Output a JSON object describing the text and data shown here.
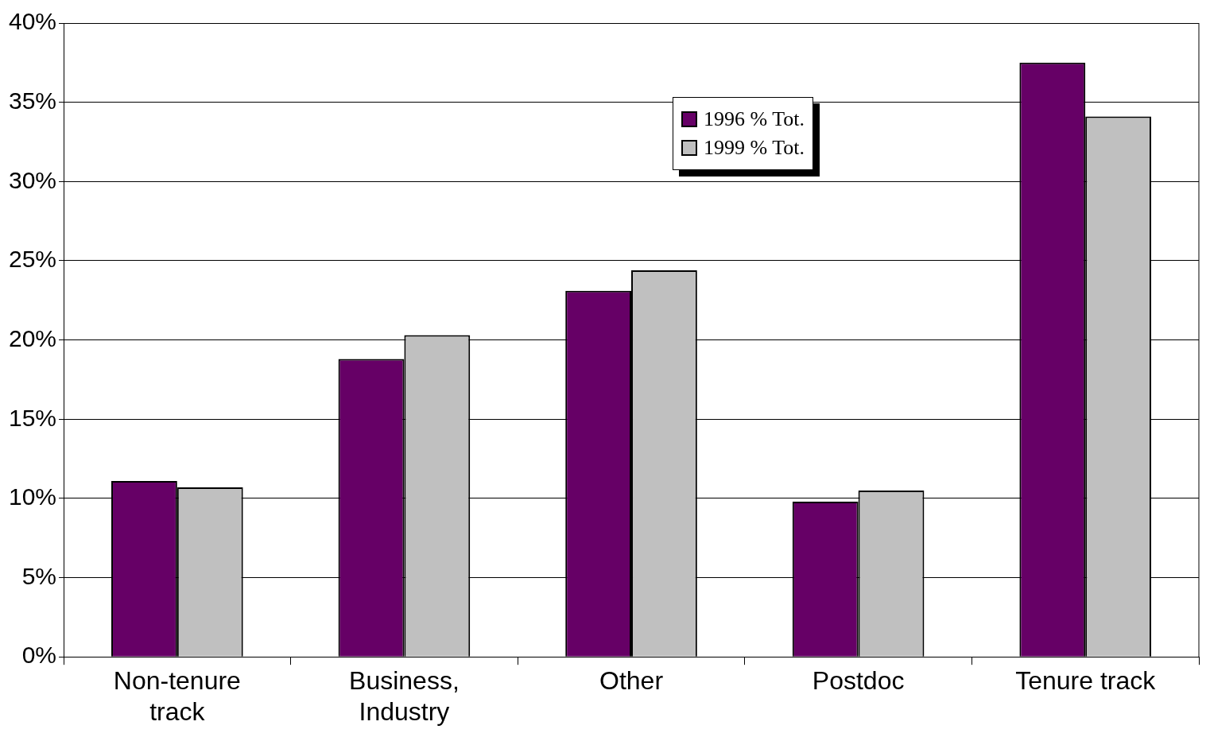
{
  "chart_data": {
    "type": "bar",
    "categories": [
      "Non-tenure track",
      "Business, Industry",
      "Other",
      "Postdoc",
      "Tenure track"
    ],
    "series": [
      {
        "name": "1996 % Tot.",
        "color": "#660066",
        "values": [
          11.1,
          18.8,
          23.1,
          9.8,
          37.5
        ]
      },
      {
        "name": "1999 % Tot.",
        "color": "#c0c0c0",
        "values": [
          10.7,
          20.3,
          24.4,
          10.5,
          34.1
        ]
      }
    ],
    "ylim": [
      0,
      40
    ],
    "yticks": [
      {
        "value": 0,
        "label": "0%"
      },
      {
        "value": 5,
        "label": "5%"
      },
      {
        "value": 10,
        "label": "10%"
      },
      {
        "value": 15,
        "label": "15%"
      },
      {
        "value": 20,
        "label": "20%"
      },
      {
        "value": 25,
        "label": "25%"
      },
      {
        "value": 30,
        "label": "30%"
      },
      {
        "value": 35,
        "label": "35%"
      },
      {
        "value": 40,
        "label": "40%"
      }
    ],
    "grid": "y",
    "legend": "top"
  }
}
